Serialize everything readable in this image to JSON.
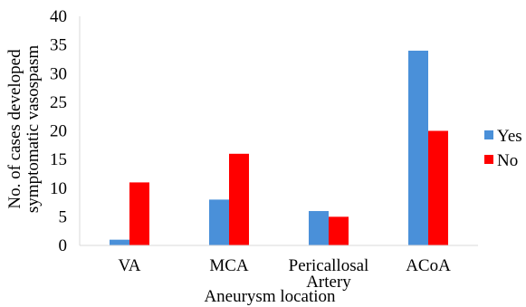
{
  "chart_data": {
    "type": "bar",
    "title": "",
    "xlabel": "Aneurysm location",
    "ylabel_lines": [
      "No. of cases developed",
      "symptomatic vasospasm"
    ],
    "categories": [
      [
        "VA"
      ],
      [
        "MCA"
      ],
      [
        "Pericallosal",
        "Artery"
      ],
      [
        "ACoA"
      ]
    ],
    "series": [
      {
        "name": "Yes",
        "color": "#4a90d9",
        "values": [
          1,
          8,
          6,
          34
        ]
      },
      {
        "name": "No",
        "color": "#ff0000",
        "values": [
          11,
          16,
          5,
          20
        ]
      }
    ],
    "ylim": [
      0,
      40
    ],
    "yticks": [
      0,
      5,
      10,
      15,
      20,
      25,
      30,
      35,
      40
    ],
    "grid": false,
    "legend_position": "right"
  }
}
